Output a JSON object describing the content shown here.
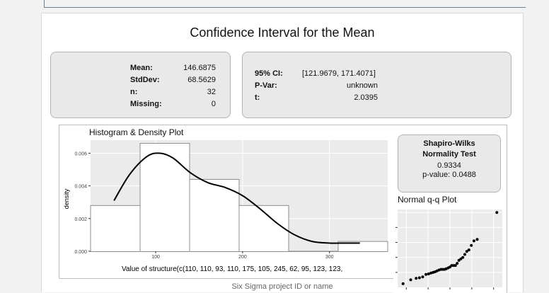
{
  "title": "Confidence Interval for the Mean",
  "summary": {
    "items": [
      {
        "label": "Mean:",
        "value": "146.6875"
      },
      {
        "label": "StdDev:",
        "value": "68.5629"
      },
      {
        "label": "n:",
        "value": "32"
      },
      {
        "label": "Missing:",
        "value": "0"
      }
    ]
  },
  "ci": {
    "items": [
      {
        "label": "95% CI:",
        "value": "[121.9679, 171.4071]"
      },
      {
        "label": "P-Var:",
        "value": "unknown"
      },
      {
        "label": "t:",
        "value": "2.0395"
      }
    ]
  },
  "colors": {
    "plot_bg": "#ebebeb",
    "bar_fill": "#ffffff",
    "bar_stroke": "#8c8c8c",
    "density_line": "#000000",
    "box_bg": "#e9e9e9"
  },
  "histogram": {
    "title": "Histogram & Density Plot",
    "ylabel": "density",
    "xlabel": "Value of structure(c(110, 110, 93, 110, 175, 105, 245, 62, 95, 123, 123,",
    "x_ticks": [
      "100",
      "200",
      "300"
    ],
    "y_ticks": [
      "0.000",
      "0.002",
      "0.004",
      "0.006"
    ]
  },
  "chart_data": [
    {
      "type": "bar",
      "title": "Histogram & Density Plot",
      "xlabel": "Value of structure(c(110, 110, 93, 110, 175, 105, 245, 62, 95, 123, 123,",
      "ylabel": "density",
      "bins": [
        {
          "x0": 25,
          "x1": 82,
          "density": 0.0028
        },
        {
          "x0": 82,
          "x1": 139,
          "density": 0.0066
        },
        {
          "x0": 139,
          "x1": 196,
          "density": 0.0044
        },
        {
          "x0": 196,
          "x1": 253,
          "density": 0.0028
        },
        {
          "x0": 253,
          "x1": 310,
          "density": 0.0
        },
        {
          "x0": 310,
          "x1": 367,
          "density": 0.0006
        }
      ],
      "density_curve": {
        "x": [
          52,
          70,
          90,
          105,
          120,
          140,
          160,
          180,
          200,
          220,
          240,
          260,
          280,
          300,
          320,
          335
        ],
        "y": [
          0.0031,
          0.0047,
          0.0058,
          0.006,
          0.0057,
          0.0048,
          0.0042,
          0.0039,
          0.0034,
          0.0026,
          0.0017,
          0.001,
          0.0006,
          0.0005,
          0.0005,
          0.0005
        ]
      },
      "xlim": [
        25,
        367
      ],
      "ylim": [
        0,
        0.0068
      ],
      "x_ticks": [
        100,
        200,
        300
      ],
      "y_ticks": [
        0,
        0.002,
        0.004,
        0.006
      ],
      "grid": true
    },
    {
      "type": "scatter",
      "title": "Normal q-q Plot",
      "x": [
        -2.15,
        -1.8,
        -1.55,
        -1.4,
        -1.25,
        -1.1,
        -0.98,
        -0.87,
        -0.77,
        -0.68,
        -0.59,
        -0.5,
        -0.41,
        -0.33,
        -0.25,
        -0.17,
        -0.08,
        0.0,
        0.08,
        0.17,
        0.25,
        0.33,
        0.41,
        0.5,
        0.59,
        0.68,
        0.77,
        0.87,
        0.98,
        1.1,
        1.25,
        2.15
      ],
      "y": [
        62,
        75,
        80,
        82,
        85,
        93,
        95,
        98,
        100,
        102,
        105,
        108,
        110,
        110,
        110,
        112,
        115,
        118,
        123,
        123,
        123,
        130,
        140,
        145,
        150,
        160,
        170,
        175,
        190,
        205,
        210,
        300
      ]
    }
  ],
  "shapiro": {
    "title_line1": "Shapiro-Wilks",
    "title_line2": "Normality Test",
    "stat": "0.9334",
    "pvalue": "p-value: 0.0488"
  },
  "qq": {
    "title": "Normal q-q Plot"
  },
  "footer": {
    "text": "Six Sigma project ID or name"
  }
}
